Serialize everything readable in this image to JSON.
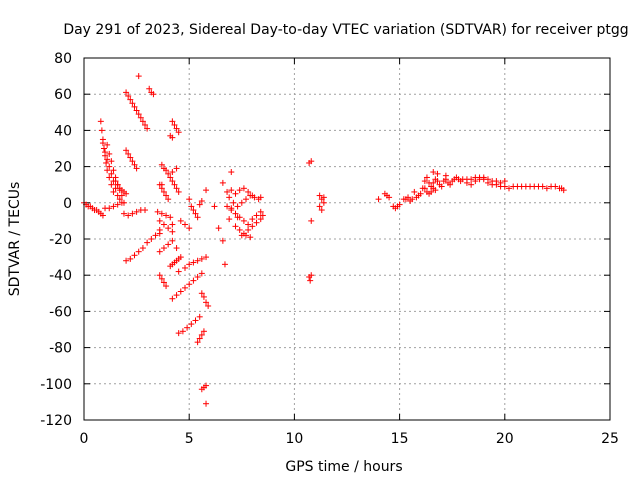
{
  "chart_data": {
    "type": "scatter",
    "title": "Day 291 of 2023, Sidereal Day-to-day VTEC variation (SDTVAR) for receiver ptgg",
    "xlabel": "GPS time / hours",
    "ylabel": "SDTVAR / TECUs",
    "xlim": [
      0,
      25
    ],
    "ylim": [
      -120,
      80
    ],
    "xticks": [
      0,
      5,
      10,
      15,
      20,
      25
    ],
    "yticks": [
      -120,
      -100,
      -80,
      -60,
      -40,
      -20,
      0,
      20,
      40,
      60,
      80
    ],
    "xtick_labels": [
      "0",
      "5",
      "10",
      "15",
      "20",
      "25"
    ],
    "ytick_labels": [
      "-120",
      "-100",
      "-80",
      "-60",
      "-40",
      "-20",
      "0",
      "20",
      "40",
      "60",
      "80"
    ],
    "grid": true,
    "marker": "+",
    "marker_color": "#ff0000",
    "series": [
      {
        "name": "SDTVAR",
        "points": [
          [
            0.0,
            0
          ],
          [
            0.1,
            -1
          ],
          [
            0.2,
            -2
          ],
          [
            0.3,
            -2
          ],
          [
            0.4,
            -3
          ],
          [
            0.5,
            -4
          ],
          [
            0.6,
            -4
          ],
          [
            0.7,
            -5
          ],
          [
            0.8,
            -6
          ],
          [
            0.9,
            -7
          ],
          [
            0.8,
            45
          ],
          [
            0.85,
            40
          ],
          [
            0.9,
            35
          ],
          [
            0.95,
            30
          ],
          [
            1.0,
            26
          ],
          [
            1.05,
            22
          ],
          [
            1.1,
            18
          ],
          [
            1.2,
            14
          ],
          [
            1.3,
            10
          ],
          [
            1.4,
            6
          ],
          [
            0.9,
            33
          ],
          [
            1.0,
            28
          ],
          [
            1.1,
            24
          ],
          [
            1.2,
            20
          ],
          [
            1.3,
            16
          ],
          [
            1.4,
            12
          ],
          [
            1.5,
            8
          ],
          [
            1.6,
            4
          ],
          [
            1.7,
            2
          ],
          [
            1.1,
            32
          ],
          [
            1.2,
            27
          ],
          [
            1.3,
            23
          ],
          [
            1.4,
            18
          ],
          [
            1.5,
            14
          ],
          [
            1.6,
            10
          ],
          [
            1.7,
            7
          ],
          [
            1.8,
            4
          ],
          [
            1.0,
            -3
          ],
          [
            1.2,
            -3
          ],
          [
            1.4,
            -2
          ],
          [
            1.6,
            -1
          ],
          [
            1.8,
            0
          ],
          [
            1.9,
            0
          ],
          [
            1.5,
            12
          ],
          [
            1.6,
            10
          ],
          [
            1.7,
            8
          ],
          [
            1.8,
            7
          ],
          [
            1.9,
            6
          ],
          [
            2.0,
            5
          ],
          [
            2.0,
            -32
          ],
          [
            2.2,
            -31
          ],
          [
            2.4,
            -29
          ],
          [
            2.6,
            -27
          ],
          [
            2.8,
            -25
          ],
          [
            3.0,
            -22
          ],
          [
            3.2,
            -20
          ],
          [
            3.4,
            -18
          ],
          [
            3.6,
            -17
          ],
          [
            1.9,
            -6
          ],
          [
            2.1,
            -7
          ],
          [
            2.3,
            -6
          ],
          [
            2.5,
            -5
          ],
          [
            2.7,
            -4
          ],
          [
            2.9,
            -4
          ],
          [
            2.0,
            61
          ],
          [
            2.1,
            59
          ],
          [
            2.2,
            57
          ],
          [
            2.3,
            55
          ],
          [
            2.4,
            53
          ],
          [
            2.5,
            51
          ],
          [
            2.6,
            49
          ],
          [
            2.7,
            47
          ],
          [
            2.8,
            45
          ],
          [
            2.9,
            43
          ],
          [
            3.0,
            41
          ],
          [
            2.0,
            29
          ],
          [
            2.1,
            27
          ],
          [
            2.2,
            25
          ],
          [
            2.3,
            23
          ],
          [
            2.4,
            21
          ],
          [
            2.5,
            19
          ],
          [
            2.6,
            70
          ],
          [
            3.1,
            63
          ],
          [
            3.2,
            61
          ],
          [
            3.3,
            60
          ],
          [
            3.7,
            21
          ],
          [
            3.8,
            19
          ],
          [
            3.9,
            18
          ],
          [
            4.0,
            16
          ],
          [
            4.1,
            14
          ],
          [
            4.2,
            12
          ],
          [
            4.3,
            10
          ],
          [
            4.4,
            8
          ],
          [
            4.5,
            6
          ],
          [
            3.6,
            10
          ],
          [
            3.7,
            8
          ],
          [
            3.8,
            6
          ],
          [
            3.9,
            4
          ],
          [
            4.0,
            2
          ],
          [
            3.5,
            -5
          ],
          [
            3.7,
            -6
          ],
          [
            3.9,
            -7
          ],
          [
            4.1,
            -8
          ],
          [
            3.6,
            -10
          ],
          [
            3.8,
            -12
          ],
          [
            4.0,
            -14
          ],
          [
            4.2,
            -16
          ],
          [
            3.6,
            -27
          ],
          [
            3.8,
            -25
          ],
          [
            4.0,
            -23
          ],
          [
            4.2,
            -21
          ],
          [
            4.1,
            -35
          ],
          [
            4.2,
            -34
          ],
          [
            4.3,
            -33
          ],
          [
            4.4,
            -32
          ],
          [
            4.5,
            -31
          ],
          [
            4.6,
            -30
          ],
          [
            3.6,
            -40
          ],
          [
            3.7,
            -42
          ],
          [
            3.8,
            -44
          ],
          [
            3.9,
            -46
          ],
          [
            4.2,
            -53
          ],
          [
            4.4,
            -51
          ],
          [
            4.6,
            -49
          ],
          [
            4.8,
            -47
          ],
          [
            5.0,
            -45
          ],
          [
            5.2,
            -43
          ],
          [
            5.4,
            -41
          ],
          [
            5.6,
            -39
          ],
          [
            4.5,
            -72
          ],
          [
            4.7,
            -71
          ],
          [
            4.9,
            -69
          ],
          [
            5.1,
            -67
          ],
          [
            5.3,
            -65
          ],
          [
            5.5,
            -63
          ],
          [
            5.4,
            -77
          ],
          [
            5.5,
            -75
          ],
          [
            5.6,
            -73
          ],
          [
            5.7,
            -71
          ],
          [
            5.6,
            -103
          ],
          [
            5.7,
            -102
          ],
          [
            5.8,
            -101
          ],
          [
            5.8,
            -111
          ],
          [
            5.6,
            -50
          ],
          [
            5.7,
            -52
          ],
          [
            5.8,
            -55
          ],
          [
            5.9,
            -57
          ],
          [
            4.2,
            45
          ],
          [
            4.3,
            43
          ],
          [
            4.4,
            41
          ],
          [
            4.5,
            39
          ],
          [
            4.1,
            37
          ],
          [
            4.2,
            36
          ],
          [
            3.6,
            -15
          ],
          [
            4.4,
            -25
          ],
          [
            4.2,
            -12
          ],
          [
            4.6,
            -10
          ],
          [
            4.8,
            -12
          ],
          [
            5.0,
            -14
          ],
          [
            4.5,
            -38
          ],
          [
            4.8,
            -36
          ],
          [
            5.0,
            -34
          ],
          [
            5.2,
            -33
          ],
          [
            5.4,
            -32
          ],
          [
            5.6,
            -31
          ],
          [
            5.8,
            -30
          ],
          [
            3.7,
            10
          ],
          [
            4.2,
            17
          ],
          [
            4.4,
            19
          ],
          [
            5.0,
            2
          ],
          [
            5.1,
            -2
          ],
          [
            5.2,
            -4
          ],
          [
            5.3,
            -6
          ],
          [
            5.4,
            -8
          ],
          [
            5.5,
            -1
          ],
          [
            5.6,
            1
          ],
          [
            5.8,
            7
          ],
          [
            6.2,
            -2
          ],
          [
            6.4,
            -14
          ],
          [
            6.6,
            -21
          ],
          [
            6.7,
            -34
          ],
          [
            6.6,
            11
          ],
          [
            6.8,
            6
          ],
          [
            6.9,
            3
          ],
          [
            7.0,
            17
          ],
          [
            6.8,
            -2
          ],
          [
            7.0,
            -4
          ],
          [
            7.2,
            -6
          ],
          [
            7.4,
            -8
          ],
          [
            7.6,
            -10
          ],
          [
            7.8,
            -12
          ],
          [
            8.0,
            -9
          ],
          [
            8.2,
            -7
          ],
          [
            8.4,
            -5
          ],
          [
            7.2,
            -13
          ],
          [
            7.4,
            -15
          ],
          [
            7.6,
            -17
          ],
          [
            7.8,
            -15
          ],
          [
            8.0,
            -13
          ],
          [
            8.2,
            -11
          ],
          [
            8.4,
            -9
          ],
          [
            8.5,
            -7
          ],
          [
            7.1,
            0
          ],
          [
            7.3,
            -2
          ],
          [
            7.5,
            0
          ],
          [
            7.7,
            2
          ],
          [
            7.9,
            4
          ],
          [
            8.1,
            3
          ],
          [
            8.3,
            2
          ],
          [
            8.4,
            3
          ],
          [
            7.0,
            7
          ],
          [
            7.2,
            5
          ],
          [
            7.4,
            7
          ],
          [
            7.6,
            8
          ],
          [
            7.8,
            6
          ],
          [
            8.0,
            4
          ],
          [
            6.9,
            -9
          ],
          [
            7.0,
            -3
          ],
          [
            7.3,
            -8
          ],
          [
            7.5,
            -18
          ],
          [
            7.7,
            -18
          ],
          [
            7.9,
            -19
          ],
          [
            10.7,
            -41
          ],
          [
            10.75,
            -43
          ],
          [
            10.8,
            -40
          ],
          [
            10.7,
            22
          ],
          [
            10.8,
            23
          ],
          [
            10.8,
            -10
          ],
          [
            11.2,
            4
          ],
          [
            11.3,
            2
          ],
          [
            11.4,
            0
          ],
          [
            11.3,
            -4
          ],
          [
            11.2,
            -2
          ],
          [
            11.4,
            3
          ],
          [
            14.0,
            2
          ],
          [
            14.3,
            5
          ],
          [
            14.4,
            4
          ],
          [
            14.5,
            3
          ],
          [
            14.7,
            -2
          ],
          [
            14.8,
            -3
          ],
          [
            15.0,
            -1
          ],
          [
            14.9,
            -2
          ],
          [
            15.2,
            2
          ],
          [
            15.3,
            2
          ],
          [
            15.4,
            3
          ],
          [
            15.5,
            1
          ],
          [
            15.6,
            2
          ],
          [
            15.7,
            6
          ],
          [
            15.8,
            3
          ],
          [
            15.9,
            4
          ],
          [
            16.0,
            5
          ],
          [
            16.1,
            8
          ],
          [
            16.2,
            12
          ],
          [
            16.3,
            14
          ],
          [
            16.4,
            11
          ],
          [
            16.5,
            9
          ],
          [
            16.6,
            8
          ],
          [
            16.7,
            7
          ],
          [
            16.2,
            8
          ],
          [
            16.3,
            6
          ],
          [
            16.4,
            5
          ],
          [
            16.5,
            6
          ],
          [
            16.6,
            11
          ],
          [
            16.7,
            13
          ],
          [
            16.8,
            12
          ],
          [
            16.9,
            10
          ],
          [
            17.0,
            9
          ],
          [
            17.1,
            12
          ],
          [
            17.2,
            13
          ],
          [
            17.3,
            11
          ],
          [
            17.4,
            10
          ],
          [
            17.5,
            12
          ],
          [
            17.6,
            13
          ],
          [
            17.7,
            14
          ],
          [
            17.8,
            13
          ],
          [
            17.9,
            12
          ],
          [
            18.0,
            13
          ],
          [
            18.2,
            13
          ],
          [
            18.4,
            13
          ],
          [
            18.6,
            12
          ],
          [
            18.8,
            13
          ],
          [
            19.0,
            13
          ],
          [
            18.6,
            14
          ],
          [
            18.8,
            14
          ],
          [
            19.0,
            14
          ],
          [
            19.2,
            13
          ],
          [
            19.4,
            12
          ],
          [
            19.6,
            12
          ],
          [
            19.8,
            11
          ],
          [
            20.0,
            12
          ],
          [
            19.2,
            11
          ],
          [
            19.4,
            10
          ],
          [
            19.6,
            10
          ],
          [
            19.8,
            9
          ],
          [
            20.0,
            9
          ],
          [
            20.2,
            8
          ],
          [
            20.4,
            9
          ],
          [
            20.6,
            9
          ],
          [
            20.8,
            9
          ],
          [
            21.0,
            9
          ],
          [
            21.2,
            9
          ],
          [
            21.4,
            9
          ],
          [
            21.6,
            9
          ],
          [
            21.8,
            9
          ],
          [
            22.0,
            8
          ],
          [
            22.2,
            9
          ],
          [
            22.4,
            9
          ],
          [
            22.6,
            8
          ],
          [
            22.7,
            8
          ],
          [
            22.8,
            7
          ],
          [
            16.8,
            16
          ],
          [
            16.6,
            17
          ],
          [
            17.2,
            15
          ],
          [
            18.2,
            11
          ],
          [
            18.4,
            10
          ]
        ]
      }
    ]
  }
}
